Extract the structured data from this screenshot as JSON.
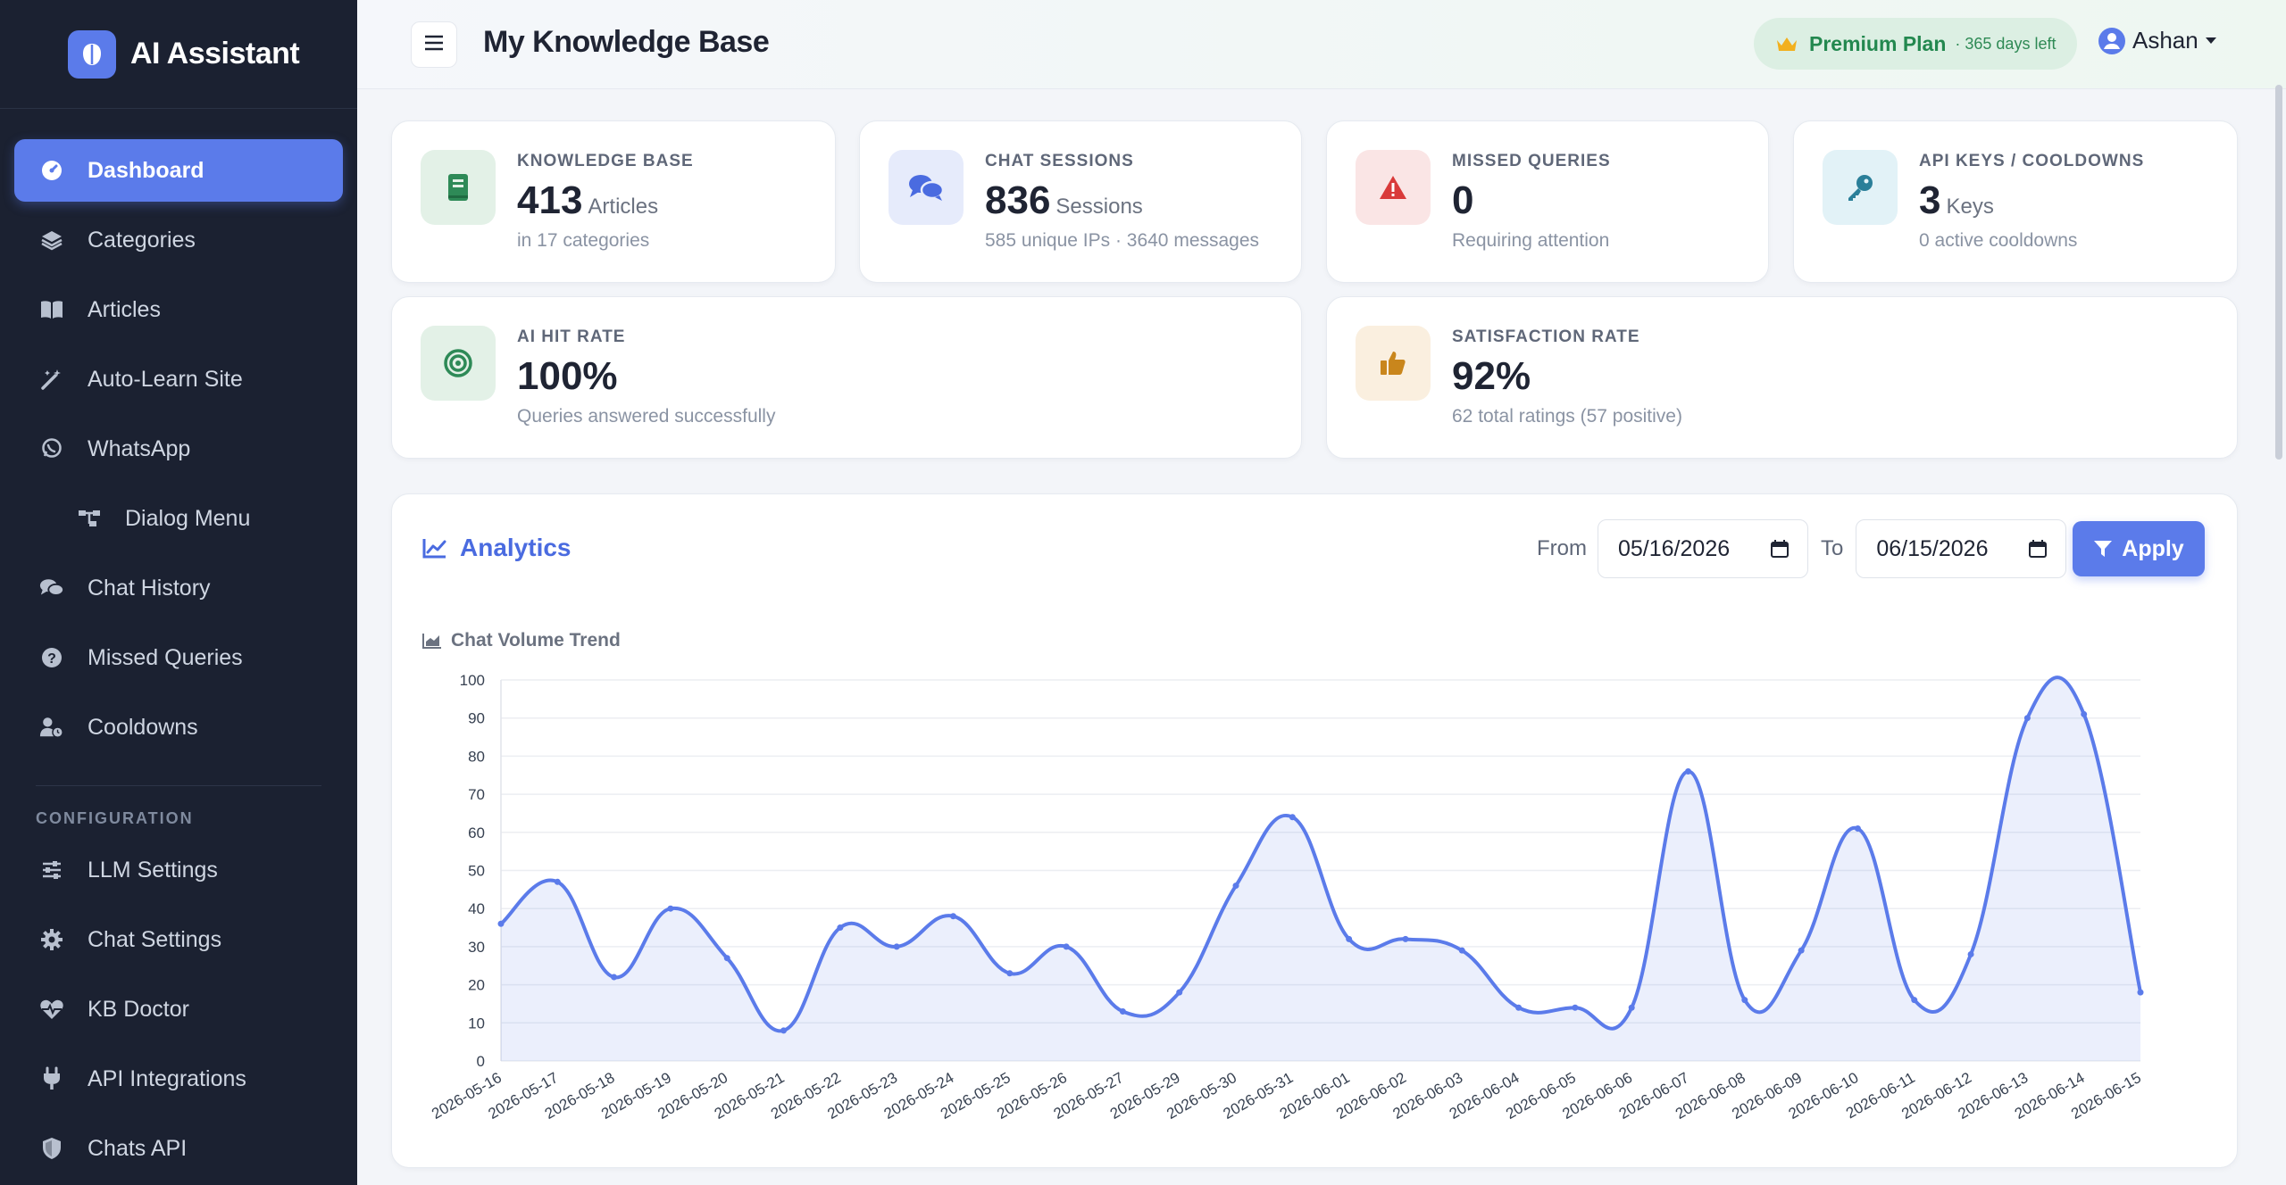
{
  "app": {
    "title": "AI Assistant"
  },
  "sidebar": {
    "items": [
      {
        "label": "Dashboard",
        "icon": "dashboard-icon",
        "active": true
      },
      {
        "label": "Categories",
        "icon": "layers-icon"
      },
      {
        "label": "Articles",
        "icon": "book-icon"
      },
      {
        "label": "Auto-Learn Site",
        "icon": "magic-wand-icon"
      },
      {
        "label": "WhatsApp",
        "icon": "whatsapp-icon"
      },
      {
        "label": "Dialog Menu",
        "icon": "sitemap-icon",
        "sub": true
      },
      {
        "label": "Chat History",
        "icon": "comments-icon"
      },
      {
        "label": "Missed Queries",
        "icon": "question-icon"
      },
      {
        "label": "Cooldowns",
        "icon": "user-clock-icon"
      }
    ],
    "section_title": "CONFIGURATION",
    "config_items": [
      {
        "label": "LLM Settings",
        "icon": "sliders-icon"
      },
      {
        "label": "Chat Settings",
        "icon": "cog-icon"
      },
      {
        "label": "KB Doctor",
        "icon": "heartbeat-icon"
      },
      {
        "label": "API Integrations",
        "icon": "plug-icon"
      },
      {
        "label": "Chats API",
        "icon": "shield-icon"
      }
    ]
  },
  "header": {
    "title": "My Knowledge Base",
    "plan": "Premium Plan",
    "plan_days": "· 365 days left",
    "user": "Ashan"
  },
  "stats": {
    "kb": {
      "label": "KNOWLEDGE BASE",
      "value": "413",
      "unit": "Articles",
      "sub": "in 17 categories"
    },
    "chats": {
      "label": "CHAT SESSIONS",
      "value": "836",
      "unit": "Sessions",
      "sub": "585 unique IPs · 3640 messages"
    },
    "missed": {
      "label": "MISSED QUERIES",
      "value": "0",
      "unit": "",
      "sub": "Requiring attention"
    },
    "api": {
      "label": "API KEYS / COOLDOWNS",
      "value": "3",
      "unit": "Keys",
      "sub": "0 active cooldowns"
    },
    "hit": {
      "label": "AI HIT RATE",
      "value": "100%",
      "sub": "Queries answered successfully"
    },
    "satisfaction": {
      "label": "SATISFACTION RATE",
      "value": "92%",
      "sub": "62 total ratings (57 positive)"
    }
  },
  "colors": {
    "accent": "#5b7bea",
    "sidebar": "#1b2131",
    "success": "#23884f",
    "danger": "#d93a3a",
    "warning": "#c9861c"
  },
  "analytics": {
    "title": "Analytics",
    "from_label": "From",
    "from_value": "05/16/2026",
    "to_label": "To",
    "to_value": "06/15/2026",
    "apply_label": "Apply",
    "chart_title": "Chat Volume Trend"
  },
  "chart_data": {
    "type": "area",
    "title": "Chat Volume Trend",
    "x": [
      "2026-05-16",
      "2026-05-17",
      "2026-05-18",
      "2026-05-19",
      "2026-05-20",
      "2026-05-21",
      "2026-05-22",
      "2026-05-23",
      "2026-05-24",
      "2026-05-25",
      "2026-05-26",
      "2026-05-27",
      "2026-05-29",
      "2026-05-30",
      "2026-05-31",
      "2026-06-01",
      "2026-06-02",
      "2026-06-03",
      "2026-06-04",
      "2026-06-05",
      "2026-06-06",
      "2026-06-07",
      "2026-06-08",
      "2026-06-09",
      "2026-06-10",
      "2026-06-11",
      "2026-06-12",
      "2026-06-13",
      "2026-06-14",
      "2026-06-15"
    ],
    "series": [
      {
        "values": [
          36,
          47,
          22,
          40,
          27,
          8,
          35,
          30,
          38,
          23,
          30,
          13,
          18,
          46,
          64,
          32,
          32,
          29,
          14,
          14,
          14,
          76,
          16,
          29,
          61,
          16,
          28,
          90,
          91,
          18
        ]
      }
    ],
    "yticks": [
      0,
      10,
      20,
      30,
      40,
      50,
      60,
      70,
      80,
      90,
      100
    ],
    "ylim": [
      0,
      100
    ],
    "grid": true
  }
}
